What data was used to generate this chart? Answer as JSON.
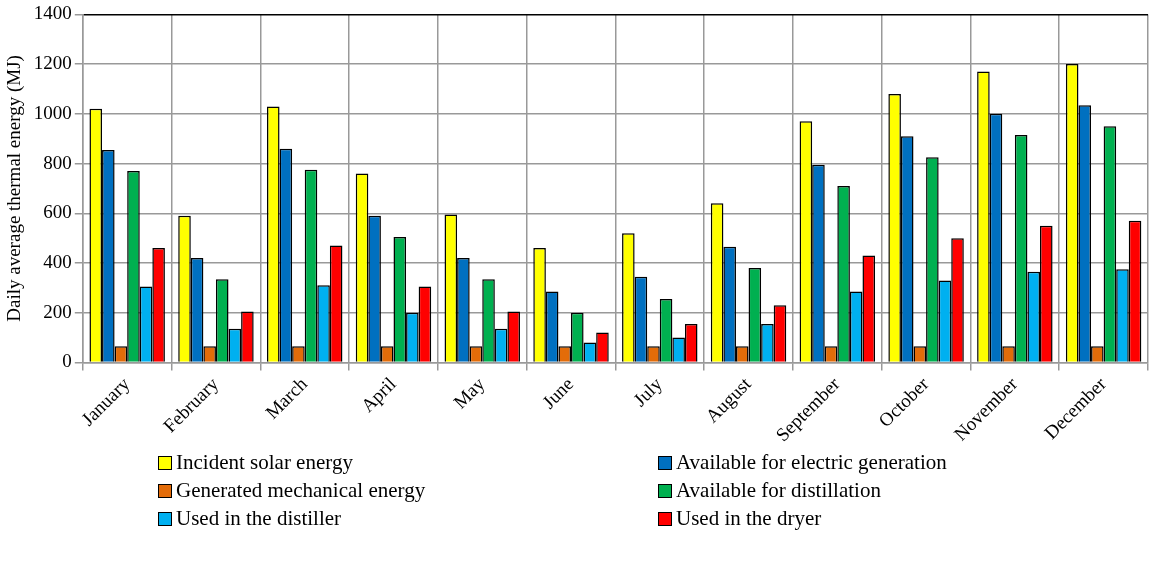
{
  "chart_data": {
    "type": "bar",
    "ylabel": "Daily average thermal energy (MJ)",
    "categories": [
      "January",
      "February",
      "March",
      "April",
      "May",
      "June",
      "July",
      "August",
      "September",
      "October",
      "November",
      "December"
    ],
    "series": [
      {
        "name": "Incident solar energy",
        "color": "#ffff00",
        "values": [
          1020,
          590,
          1030,
          760,
          595,
          460,
          520,
          640,
          970,
          1080,
          1170,
          1200
        ]
      },
      {
        "name": "Available for electric generation",
        "color": "#0070c0",
        "values": [
          855,
          420,
          860,
          590,
          420,
          285,
          345,
          465,
          795,
          910,
          1000,
          1035
        ]
      },
      {
        "name": "Generated mechanical energy",
        "color": "#e36c09",
        "values": [
          65,
          65,
          65,
          65,
          65,
          65,
          65,
          65,
          65,
          65,
          65,
          65
        ]
      },
      {
        "name": "Available for distillation",
        "color": "#00b050",
        "values": [
          770,
          335,
          775,
          505,
          335,
          200,
          255,
          380,
          710,
          825,
          915,
          950
        ]
      },
      {
        "name": "Used in the distiller",
        "color": "#00b0f0",
        "values": [
          305,
          135,
          310,
          200,
          135,
          80,
          100,
          155,
          285,
          330,
          365,
          375
        ]
      },
      {
        "name": "Used in the dryer",
        "color": "#ff0000",
        "values": [
          460,
          205,
          470,
          305,
          205,
          120,
          155,
          230,
          430,
          500,
          550,
          570
        ]
      }
    ],
    "ylim": [
      0,
      1400
    ],
    "yticks": [
      0,
      200,
      400,
      600,
      800,
      1000,
      1200,
      1400
    ],
    "grid": true,
    "legend": "bottom"
  }
}
